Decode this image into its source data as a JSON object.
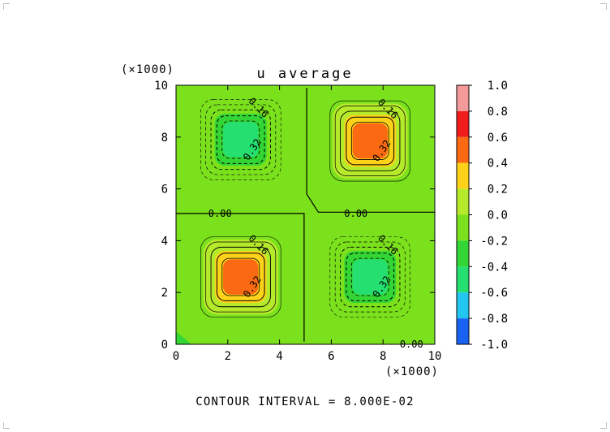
{
  "chart_data": {
    "type": "heatmap",
    "title": "u average",
    "x_multiplier": "(×1000)",
    "y_multiplier": "(×1000)",
    "xlim": [
      0,
      10
    ],
    "ylim": [
      0,
      10
    ],
    "x_ticks": [
      "0",
      "2",
      "4",
      "6",
      "8",
      "10"
    ],
    "y_ticks": [
      "0",
      "2",
      "4",
      "6",
      "8",
      "10"
    ],
    "footer": "CONTOUR INTERVAL = 8.000E-02",
    "colorbar": {
      "ticks": [
        "1.0",
        "0.8",
        "0.6",
        "0.4",
        "0.2",
        "0.0",
        "-0.2",
        "-0.4",
        "-0.6",
        "-0.8",
        "-1.0"
      ],
      "colors": [
        "#f49a9a",
        "#f01c1c",
        "#fb6a12",
        "#ffd21a",
        "#b5ea2b",
        "#7ae11c",
        "#33d635",
        "#25e070",
        "#26e8c5",
        "#22c6f0",
        "#1a63f2"
      ]
    },
    "background_color": "#7ae11c",
    "contour_labels": [
      "0.16",
      "0.32",
      "0.00"
    ],
    "cells": [
      {
        "quadrant": "upper-left",
        "center": [
          2.5,
          7.9
        ],
        "sign": "negative",
        "peak": -0.56,
        "labels": [
          "0.16",
          "0.32"
        ]
      },
      {
        "quadrant": "upper-right",
        "center": [
          7.5,
          7.85
        ],
        "sign": "positive",
        "peak": 0.56,
        "labels": [
          "0.16",
          "0.32"
        ]
      },
      {
        "quadrant": "lower-left",
        "center": [
          2.5,
          2.6
        ],
        "sign": "positive",
        "peak": 0.56,
        "labels": [
          "0.16",
          "0.32"
        ]
      },
      {
        "quadrant": "lower-right",
        "center": [
          7.5,
          2.6
        ],
        "sign": "negative",
        "peak": -0.56,
        "labels": [
          "0.16",
          "0.32"
        ]
      }
    ],
    "zero_line_labels": [
      "0.00",
      "0.00",
      "0.00"
    ]
  }
}
